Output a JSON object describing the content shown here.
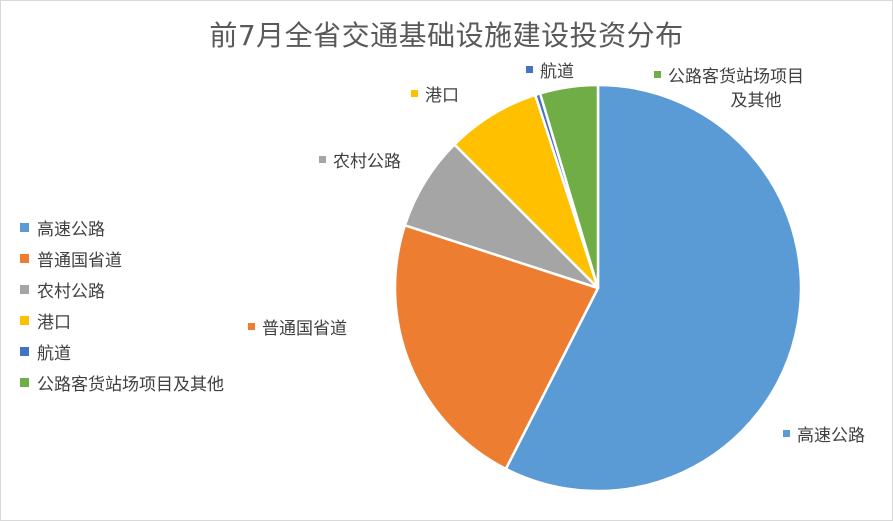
{
  "chart_data": {
    "type": "pie",
    "title": "前7月全省交通基础设施建设投资分布",
    "categories": [
      "高速公路",
      "普通国省道",
      "农村公路",
      "港口",
      "航道",
      "公路客货站场项目及其他"
    ],
    "values": [
      57.5,
      22.5,
      7.5,
      7.5,
      0.4,
      4.6
    ],
    "unit": "%",
    "legend_position": "left",
    "slice_labels": [
      {
        "category": "高速公路",
        "lines": [
          "高速公路"
        ]
      },
      {
        "category": "普通国省道",
        "lines": [
          "普通国省道"
        ]
      },
      {
        "category": "农村公路",
        "lines": [
          "农村公路"
        ]
      },
      {
        "category": "港口",
        "lines": [
          "港口"
        ]
      },
      {
        "category": "航道",
        "lines": [
          "航道"
        ]
      },
      {
        "category": "公路客货站场项目及其他",
        "lines": [
          "公路客货站场项目",
          "及其他"
        ]
      }
    ]
  },
  "colors": {
    "高速公路": "#5b9bd5",
    "普通国省道": "#ed7d31",
    "农村公路": "#a5a5a5",
    "港口": "#ffc000",
    "航道": "#4472c4",
    "公路客货站场项目及其他": "#70ad47"
  }
}
